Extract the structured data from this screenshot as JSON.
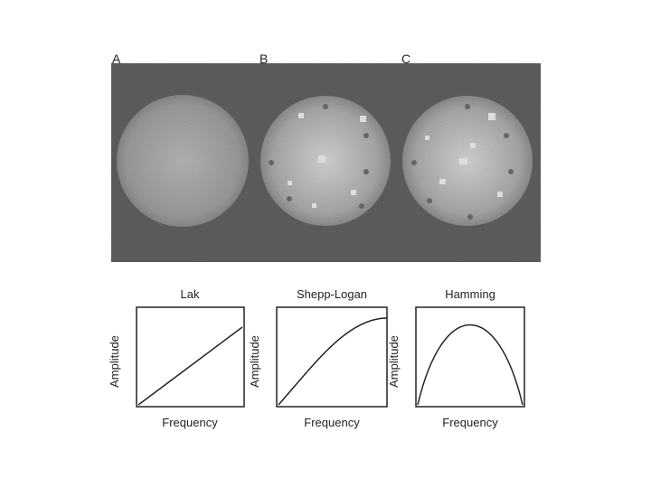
{
  "panels": [
    {
      "label": "A"
    },
    {
      "label": "B"
    },
    {
      "label": "C"
    }
  ],
  "plots": [
    {
      "title": "Lak",
      "x_label": "Frequency",
      "y_label": "Amplitude"
    },
    {
      "title": "Shepp-Logan",
      "x_label": "Frequency",
      "y_label": "Amplitude"
    },
    {
      "title": "Hamming",
      "x_label": "Frequency",
      "y_label": "Amplitude"
    }
  ]
}
